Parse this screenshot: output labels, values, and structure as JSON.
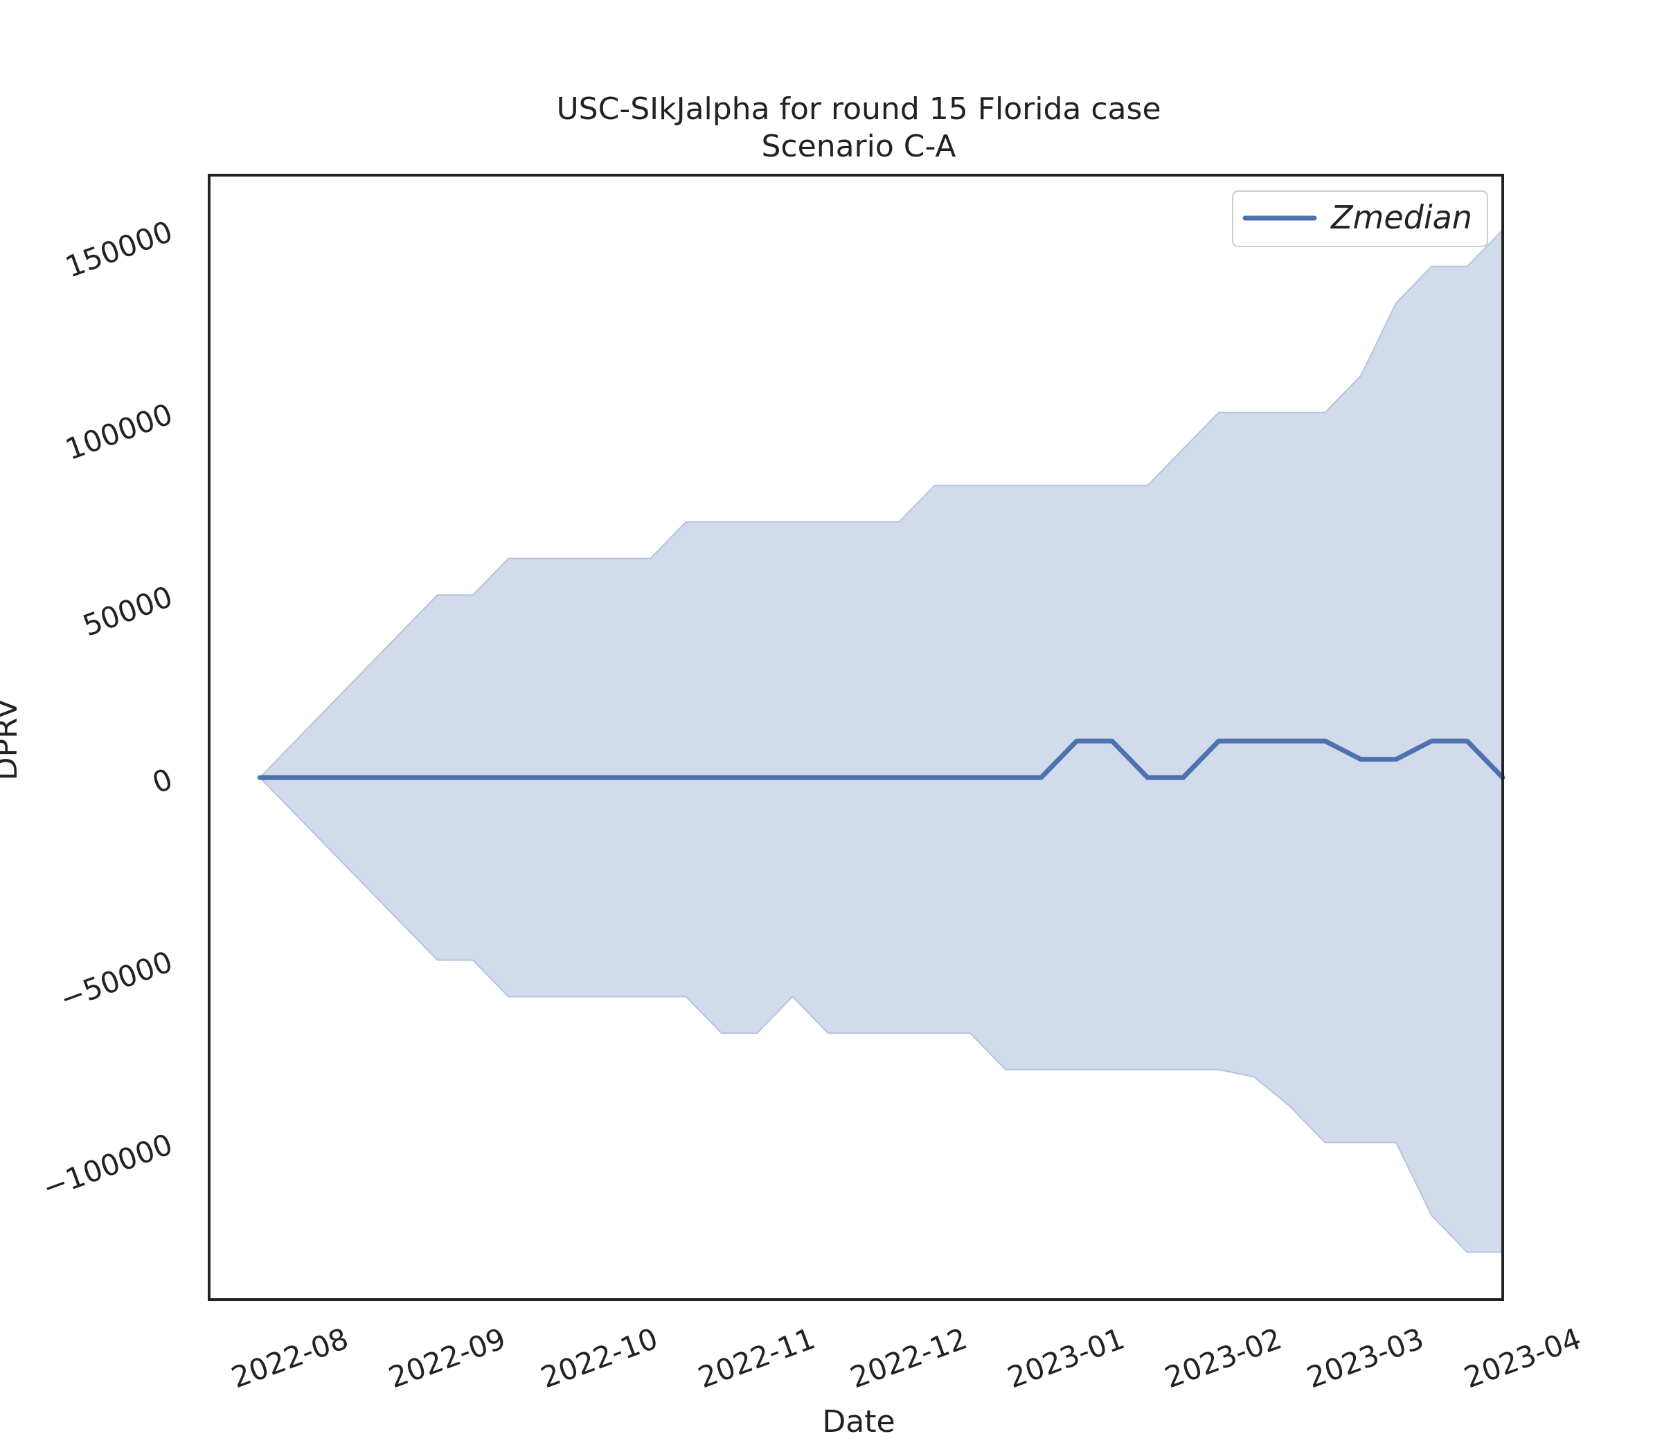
{
  "chart_data": {
    "type": "area",
    "title": "USC-SIkJalpha for round 15 Florida case",
    "subtitle": "Scenario C-A",
    "xlabel": "Date",
    "ylabel": "DPRV",
    "x_ticks": [
      "2022-08",
      "2022-09",
      "2022-10",
      "2022-11",
      "2022-12",
      "2023-01",
      "2023-02",
      "2023-03",
      "2023-04"
    ],
    "y_ticks": [
      -100000,
      -50000,
      0,
      50000,
      100000,
      150000
    ],
    "y_tick_labels": [
      "−100000",
      "−50000",
      "0",
      "50000",
      "100000",
      "150000"
    ],
    "xlim": [
      "2022-07-20",
      "2023-04-01"
    ],
    "ylim": [
      -143000,
      165000
    ],
    "grid": false,
    "legend": {
      "placement": "top-right",
      "entries": [
        "Zmedian"
      ]
    },
    "colors": {
      "line": "#4c72b0",
      "band_fill": "#d2dbeb",
      "band_edge": "#b4c3de",
      "frame": "#222222"
    },
    "x": [
      "2022-07-30",
      "2022-08-06",
      "2022-08-13",
      "2022-08-20",
      "2022-08-27",
      "2022-09-03",
      "2022-09-10",
      "2022-09-17",
      "2022-09-24",
      "2022-10-01",
      "2022-10-08",
      "2022-10-15",
      "2022-10-22",
      "2022-10-29",
      "2022-11-05",
      "2022-11-12",
      "2022-11-19",
      "2022-11-26",
      "2022-12-03",
      "2022-12-10",
      "2022-12-17",
      "2022-12-24",
      "2022-12-31",
      "2023-01-07",
      "2023-01-14",
      "2023-01-21",
      "2023-01-28",
      "2023-02-04",
      "2023-02-11",
      "2023-02-18",
      "2023-02-25",
      "2023-03-04",
      "2023-03-11",
      "2023-03-18",
      "2023-03-25",
      "2023-04-01"
    ],
    "series": [
      {
        "name": "Zmedian",
        "values": [
          0,
          0,
          0,
          0,
          0,
          0,
          0,
          0,
          0,
          0,
          0,
          0,
          0,
          0,
          0,
          0,
          0,
          0,
          0,
          0,
          0,
          0,
          0,
          10000,
          10000,
          0,
          0,
          10000,
          10000,
          10000,
          10000,
          5000,
          5000,
          10000,
          10000,
          0
        ]
      }
    ],
    "band": {
      "upper": [
        0,
        10000,
        20000,
        30000,
        40000,
        50000,
        50000,
        60000,
        60000,
        60000,
        60000,
        60000,
        70000,
        70000,
        70000,
        70000,
        70000,
        70000,
        70000,
        80000,
        80000,
        80000,
        80000,
        80000,
        80000,
        80000,
        90000,
        100000,
        100000,
        100000,
        100000,
        110000,
        130000,
        140000,
        140000,
        150000
      ],
      "lower": [
        0,
        -10000,
        -20000,
        -30000,
        -40000,
        -50000,
        -50000,
        -60000,
        -60000,
        -60000,
        -60000,
        -60000,
        -60000,
        -70000,
        -70000,
        -60000,
        -70000,
        -70000,
        -70000,
        -70000,
        -70000,
        -80000,
        -80000,
        -80000,
        -80000,
        -80000,
        -80000,
        -80000,
        -82000,
        -90000,
        -100000,
        -100000,
        -100000,
        -120000,
        -130000,
        -130000
      ]
    }
  }
}
